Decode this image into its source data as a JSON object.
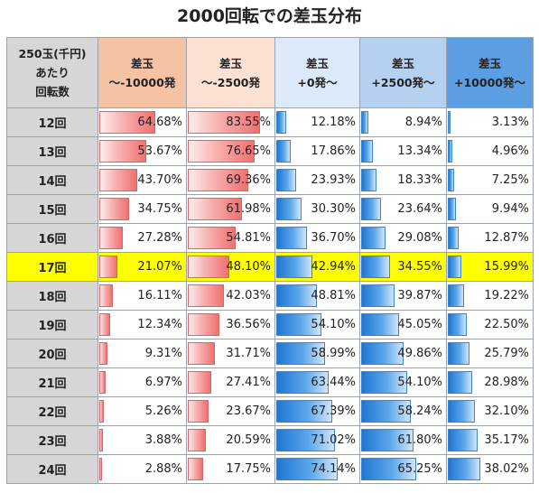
{
  "chart_data": {
    "type": "table",
    "title": "2000回転での差玉分布",
    "row_header": "250玉(千円)\nあたり\n回転数",
    "columns": [
      "差玉\n～-10000発",
      "差玉\n～-2500発",
      "差玉\n+0発～",
      "差玉\n+2500発～",
      "差玉\n+10000発～"
    ],
    "column_bar_colors": [
      "red",
      "red",
      "blue",
      "blue",
      "blue"
    ],
    "highlight_row": "17回",
    "highlight_color": "#ffff00",
    "rows": [
      {
        "label": "12回",
        "values": [
          64.68,
          83.55,
          12.18,
          8.94,
          3.13
        ]
      },
      {
        "label": "13回",
        "values": [
          53.67,
          76.65,
          17.86,
          13.34,
          4.96
        ]
      },
      {
        "label": "14回",
        "values": [
          43.7,
          69.36,
          23.93,
          18.33,
          7.25
        ]
      },
      {
        "label": "15回",
        "values": [
          34.75,
          61.98,
          30.3,
          23.64,
          9.94
        ]
      },
      {
        "label": "16回",
        "values": [
          27.28,
          54.81,
          36.7,
          29.08,
          12.87
        ]
      },
      {
        "label": "17回",
        "values": [
          21.07,
          48.1,
          42.94,
          34.55,
          15.99
        ]
      },
      {
        "label": "18回",
        "values": [
          16.11,
          42.03,
          48.81,
          39.87,
          19.22
        ]
      },
      {
        "label": "19回",
        "values": [
          12.34,
          36.56,
          54.1,
          45.05,
          22.5
        ]
      },
      {
        "label": "20回",
        "values": [
          9.31,
          31.71,
          58.99,
          49.86,
          25.79
        ]
      },
      {
        "label": "21回",
        "values": [
          6.97,
          27.41,
          63.44,
          54.1,
          28.98
        ]
      },
      {
        "label": "22回",
        "values": [
          5.26,
          23.67,
          67.39,
          58.24,
          32.1
        ]
      },
      {
        "label": "23回",
        "values": [
          3.88,
          20.59,
          71.02,
          61.8,
          35.17
        ]
      },
      {
        "label": "24回",
        "values": [
          2.88,
          17.75,
          74.14,
          65.25,
          38.02
        ]
      }
    ]
  }
}
